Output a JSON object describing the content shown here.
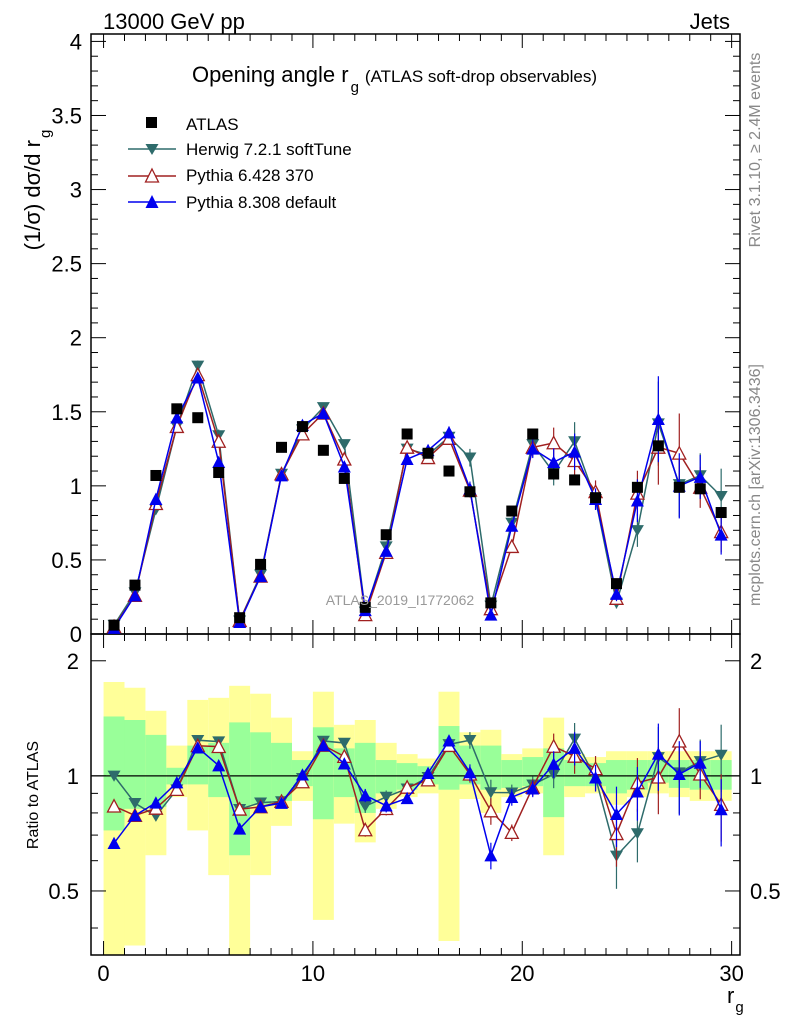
{
  "header": {
    "energy_label": "13000 GeV pp",
    "process_label": "Jets",
    "watermark_title": "ATLAS_2019_I1772062",
    "side_label_top": "Rivet 3.1.10, ≥ 2.4M events",
    "side_label_bottom": "mcplots.cern.ch [arXiv:1306.3436]"
  },
  "chart_data": {
    "type": "line",
    "title_main": "Opening angle r",
    "title_sub": "g",
    "title_extra": "(ATLAS soft-drop observables)",
    "ylabel": "(1/σ) dσ/d r",
    "ylabel_sub": "g",
    "xlabel": "r",
    "xlabel_sub": "g",
    "ratio_ylabel": "Ratio to ATLAS",
    "xlim": [
      -0.6,
      30.4
    ],
    "ylim": [
      0,
      4.05
    ],
    "ratio_ylim": [
      0.34,
      2.35
    ],
    "x_ticks": [
      "0",
      "10",
      "20",
      "30"
    ],
    "y_ticks": [
      "0",
      "0.5",
      "1",
      "1.5",
      "2",
      "2.5",
      "3",
      "3.5",
      "4"
    ],
    "ratio_ticks": [
      "0.5",
      "1",
      "2"
    ],
    "x": [
      0.5,
      1.5,
      2.5,
      3.5,
      4.5,
      5.5,
      6.5,
      7.5,
      8.5,
      9.5,
      10.5,
      11.5,
      12.5,
      13.5,
      14.5,
      15.5,
      16.5,
      17.5,
      18.5,
      19.5,
      20.5,
      21.5,
      22.5,
      23.5,
      24.5,
      25.5,
      26.5,
      27.5,
      28.5,
      29.5
    ],
    "data": {
      "name": "ATLAS",
      "values": [
        0.06,
        0.33,
        1.07,
        1.52,
        1.46,
        1.09,
        0.11,
        0.47,
        1.26,
        1.4,
        1.24,
        1.05,
        0.18,
        0.67,
        1.35,
        1.22,
        1.1,
        0.96,
        0.21,
        0.83,
        1.35,
        1.08,
        1.04,
        0.92,
        0.34,
        0.99,
        1.27,
        0.99,
        0.98,
        0.82
      ]
    },
    "series": [
      {
        "name": "Herwig 7.2.1 softTune",
        "color": "#2e6b6b",
        "marker": "triangle-down",
        "values": [
          0.06,
          0.28,
          0.84,
          1.4,
          1.81,
          1.34,
          0.09,
          0.4,
          1.08,
          1.38,
          1.53,
          1.28,
          0.15,
          0.59,
          1.25,
          1.21,
          1.33,
          1.19,
          0.19,
          0.75,
          1.28,
          1.09,
          1.3,
          0.91,
          0.21,
          0.7,
          1.42,
          1.01,
          1.07,
          0.93
        ]
      },
      {
        "name": "Pythia 6.428 370",
        "color": "#a02020",
        "marker": "triangle-open",
        "values": [
          0.05,
          0.26,
          0.88,
          1.4,
          1.75,
          1.3,
          0.09,
          0.39,
          1.08,
          1.35,
          1.49,
          1.18,
          0.13,
          0.55,
          1.26,
          1.19,
          1.32,
          0.97,
          0.17,
          0.59,
          1.26,
          1.29,
          1.17,
          0.96,
          0.24,
          0.95,
          1.26,
          1.22,
          0.99,
          0.69
        ]
      },
      {
        "name": "Pythia 8.308 default",
        "color": "#0000ee",
        "marker": "triangle-up",
        "values": [
          0.04,
          0.26,
          0.91,
          1.46,
          1.73,
          1.16,
          0.08,
          0.39,
          1.07,
          1.41,
          1.49,
          1.13,
          0.16,
          0.56,
          1.18,
          1.24,
          1.36,
          0.98,
          0.13,
          0.73,
          1.25,
          1.16,
          1.23,
          0.91,
          0.27,
          0.9,
          1.45,
          1.0,
          1.06,
          0.67
        ]
      }
    ],
    "legend": [
      "ATLAS",
      "Herwig 7.2.1 softTune",
      "Pythia 6.428 370",
      "Pythia 8.308 default"
    ],
    "ratio_band_inner": [
      [
        0.72,
        1.43
      ],
      [
        0.82,
        1.4
      ],
      [
        0.83,
        1.28
      ],
      [
        0.95,
        1.05
      ],
      [
        0.95,
        1.2
      ],
      [
        0.88,
        1.22
      ],
      [
        0.62,
        1.38
      ],
      [
        0.84,
        1.3
      ],
      [
        0.86,
        1.22
      ],
      [
        0.94,
        1.1
      ],
      [
        0.77,
        1.34
      ],
      [
        0.88,
        1.18
      ],
      [
        0.8,
        1.22
      ],
      [
        0.9,
        1.1
      ],
      [
        0.92,
        1.08
      ],
      [
        0.95,
        1.06
      ],
      [
        0.92,
        1.35
      ],
      [
        0.95,
        1.2
      ],
      [
        0.92,
        1.2
      ],
      [
        0.93,
        1.1
      ],
      [
        0.94,
        1.12
      ],
      [
        0.78,
        1.18
      ],
      [
        0.94,
        1.1
      ],
      [
        0.94,
        1.08
      ],
      [
        0.9,
        1.1
      ],
      [
        0.92,
        1.1
      ],
      [
        0.96,
        1.1
      ],
      [
        0.93,
        1.1
      ],
      [
        0.92,
        1.1
      ],
      [
        0.92,
        1.1
      ]
    ],
    "ratio_band_outer": [
      [
        0.34,
        1.76
      ],
      [
        0.36,
        1.7
      ],
      [
        0.62,
        1.48
      ],
      [
        0.88,
        1.2
      ],
      [
        0.72,
        1.58
      ],
      [
        0.55,
        1.6
      ],
      [
        0.34,
        1.72
      ],
      [
        0.55,
        1.64
      ],
      [
        0.74,
        1.42
      ],
      [
        0.86,
        1.16
      ],
      [
        0.42,
        1.66
      ],
      [
        0.75,
        1.36
      ],
      [
        0.67,
        1.4
      ],
      [
        0.82,
        1.22
      ],
      [
        0.88,
        1.14
      ],
      [
        0.9,
        1.11
      ],
      [
        0.37,
        1.66
      ],
      [
        0.87,
        1.3
      ],
      [
        0.8,
        1.32
      ],
      [
        0.88,
        1.14
      ],
      [
        0.9,
        1.18
      ],
      [
        0.62,
        1.42
      ],
      [
        0.88,
        1.14
      ],
      [
        0.9,
        1.12
      ],
      [
        0.84,
        1.16
      ],
      [
        0.88,
        1.16
      ],
      [
        0.9,
        1.16
      ],
      [
        0.88,
        1.16
      ],
      [
        0.86,
        1.16
      ],
      [
        0.86,
        1.16
      ]
    ],
    "ratio_err": [
      0.02,
      0.03,
      0.02,
      0.02,
      0.02,
      0.03,
      0.03,
      0.03,
      0.02,
      0.02,
      0.02,
      0.02,
      0.04,
      0.04,
      0.03,
      0.03,
      0.03,
      0.05,
      0.08,
      0.05,
      0.05,
      0.08,
      0.1,
      0.08,
      0.18,
      0.16,
      0.2,
      0.22,
      0.14,
      0.2
    ],
    "colors": {
      "band_inner": "#99ff99",
      "band_outer": "#ffff99"
    }
  }
}
